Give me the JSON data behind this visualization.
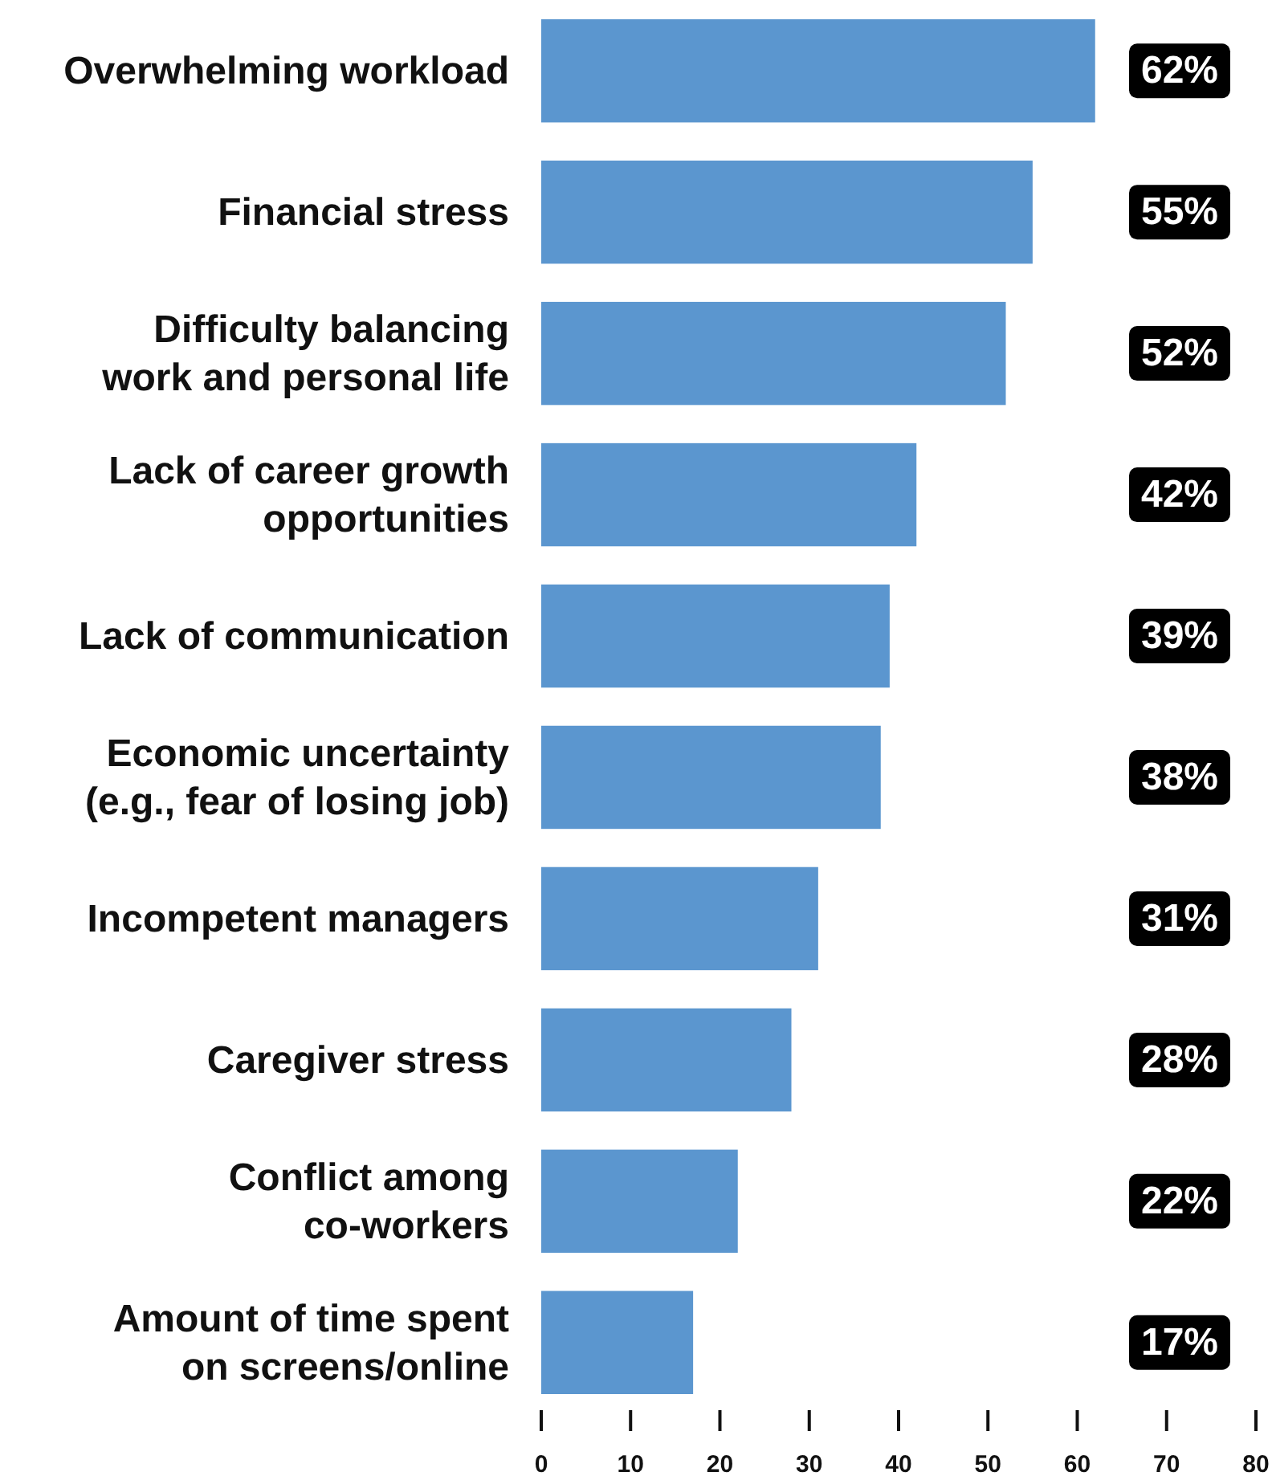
{
  "chart_data": {
    "type": "bar",
    "orientation": "horizontal",
    "categories": [
      "Overwhelming workload",
      "Financial stress",
      "Difficulty balancing\nwork and personal life",
      "Lack of career growth\nopportunities",
      "Lack of communication",
      "Economic uncertainty\n(e.g., fear of losing job)",
      "Incompetent managers",
      "Caregiver stress",
      "Conflict among\nco-workers",
      "Amount of time spent\non screens/online"
    ],
    "values": [
      62,
      55,
      52,
      42,
      39,
      38,
      31,
      28,
      22,
      17
    ],
    "value_labels": [
      "62%",
      "55%",
      "52%",
      "42%",
      "39%",
      "38%",
      "31%",
      "28%",
      "22%",
      "17%"
    ],
    "color": "#5b96cf",
    "xlim": [
      0,
      80
    ],
    "xticks": [
      0,
      10,
      20,
      30,
      40,
      50,
      60,
      70,
      80
    ],
    "grid": false
  }
}
